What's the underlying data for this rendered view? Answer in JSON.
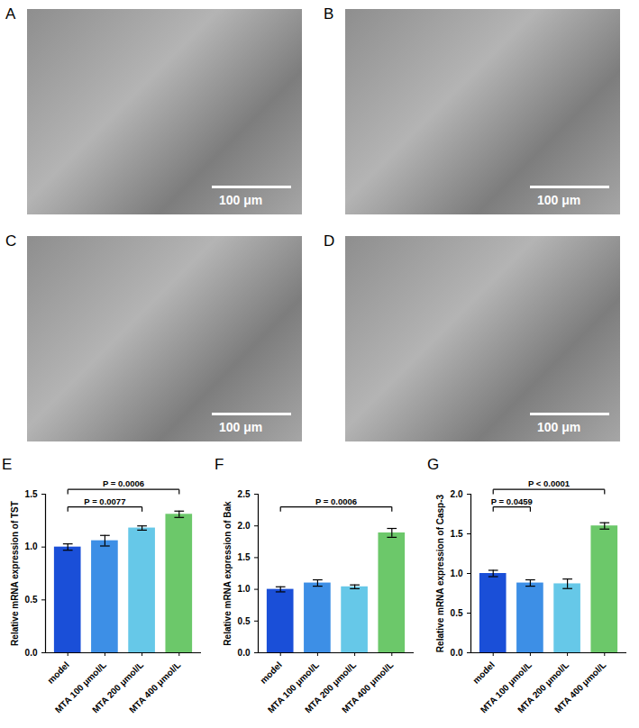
{
  "chart_data": [
    {
      "panel_label": "E",
      "type": "bar",
      "categories": [
        "model",
        "MTA 100 μmol/L",
        "MTA 200 μmol/L",
        "MTA 400 μmol/L"
      ],
      "values": [
        1.0,
        1.06,
        1.18,
        1.31
      ],
      "errors": [
        0.03,
        0.05,
        0.02,
        0.03
      ],
      "colors": [
        "#1a4fd8",
        "#3d8fe6",
        "#66c8e8",
        "#6cc86a"
      ],
      "y_label": "Relative mRNA expression of TST",
      "ylim": [
        0,
        1.5
      ],
      "yticks": [
        {
          "value": 0,
          "label": "0.0"
        },
        {
          "value": 0.5,
          "label": "0.5"
        },
        {
          "value": 1,
          "label": "1.0"
        },
        {
          "value": 1.5,
          "label": "1.5"
        }
      ],
      "grid": false,
      "annotations": [
        {
          "text": "P = 0.0077",
          "from": "model",
          "to": "MTA 200 μmol/L"
        },
        {
          "text": "P = 0.0006",
          "from": "model",
          "to": "MTA 400 μmol/L"
        }
      ]
    },
    {
      "panel_label": "F",
      "type": "bar",
      "categories": [
        "model",
        "MTA 100 μmol/L",
        "MTA 200 μmol/L",
        "MTA 400 μmol/L"
      ],
      "values": [
        1.0,
        1.1,
        1.04,
        1.89
      ],
      "errors": [
        0.04,
        0.05,
        0.03,
        0.07
      ],
      "colors": [
        "#1a4fd8",
        "#3d8fe6",
        "#66c8e8",
        "#6cc86a"
      ],
      "y_label": "Relative mRNA expression of Bak",
      "ylim": [
        0,
        2.5
      ],
      "yticks": [
        {
          "value": 0,
          "label": "0.0"
        },
        {
          "value": 0.5,
          "label": "0.5"
        },
        {
          "value": 1,
          "label": "1.0"
        },
        {
          "value": 1.5,
          "label": "1.5"
        },
        {
          "value": 2,
          "label": "2.0"
        },
        {
          "value": 2.5,
          "label": "2.5"
        }
      ],
      "grid": false,
      "annotations": [
        {
          "text": "P = 0.0006",
          "from": "model",
          "to": "MTA 400 μmol/L"
        }
      ]
    },
    {
      "panel_label": "G",
      "type": "bar",
      "categories": [
        "model",
        "MTA 100 μmol/L",
        "MTA 200 μmol/L",
        "MTA 400 μmol/L"
      ],
      "values": [
        1.0,
        0.88,
        0.87,
        1.6
      ],
      "errors": [
        0.04,
        0.04,
        0.06,
        0.04
      ],
      "colors": [
        "#1a4fd8",
        "#3d8fe6",
        "#66c8e8",
        "#6cc86a"
      ],
      "y_label": "Relative mRNA expression of Casp-3",
      "ylim": [
        0,
        2.0
      ],
      "yticks": [
        {
          "value": 0,
          "label": "0.0"
        },
        {
          "value": 0.5,
          "label": "0.5"
        },
        {
          "value": 1,
          "label": "1.0"
        },
        {
          "value": 1.5,
          "label": "1.5"
        },
        {
          "value": 2,
          "label": "2.0"
        }
      ],
      "grid": false,
      "annotations": [
        {
          "text": "P = 0.0459",
          "from": "model",
          "to": "MTA 100 μmol/L"
        },
        {
          "text": "P < 0.0001",
          "from": "model",
          "to": "MTA 400 μmol/L"
        }
      ]
    }
  ],
  "images": [
    {
      "panel_label": "A",
      "scale_bar": "100 μm"
    },
    {
      "panel_label": "B",
      "scale_bar": "100 μm"
    },
    {
      "panel_label": "C",
      "scale_bar": "100 μm"
    },
    {
      "panel_label": "D",
      "scale_bar": "100 μm"
    }
  ]
}
